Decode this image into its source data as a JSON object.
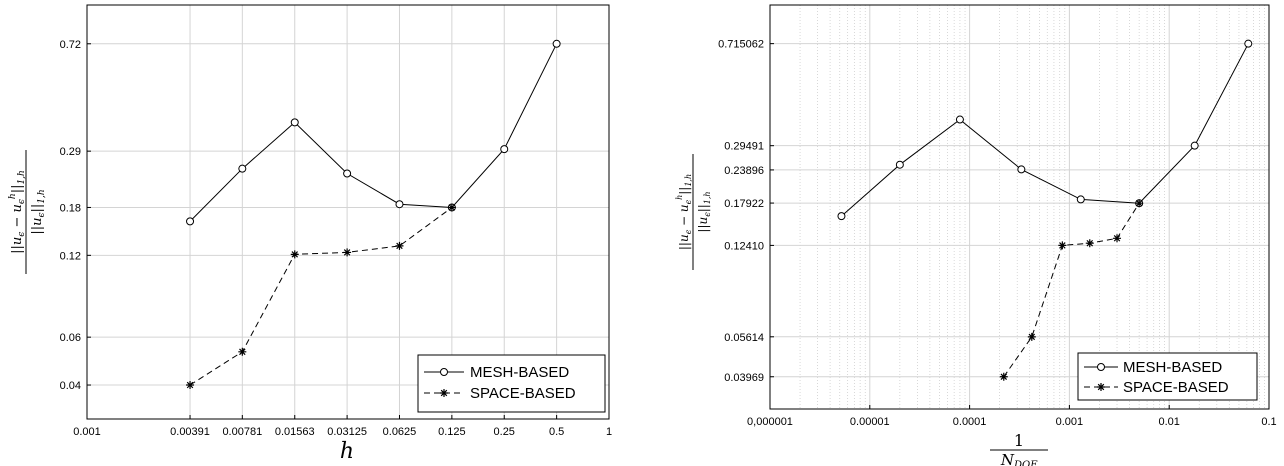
{
  "chart_data": [
    {
      "type": "line",
      "xlabel": "h",
      "ylabel": "||u_ϵ − u_ϵ^h||_{1,h} / ||u_ϵ||_{1,h}",
      "xscale": "log",
      "yscale": "log",
      "xlim": [
        0.001,
        1
      ],
      "ylim": [
        0.03,
        1.0
      ],
      "grid": true,
      "legend_position": "bottom-right",
      "x_ticks": [
        0.001,
        0.00391,
        0.00781,
        0.01563,
        0.03125,
        0.0625,
        0.125,
        0.25,
        0.5,
        1
      ],
      "x_tick_labels": [
        "0.001",
        "0.00391",
        "0.00781",
        "0.01563",
        "0.03125",
        "0.0625",
        "0.125",
        "0.25",
        "0.5",
        "1"
      ],
      "y_ticks": [
        0.04,
        0.06,
        0.12,
        0.18,
        0.29,
        0.72
      ],
      "y_tick_labels": [
        "0.04",
        "0.06",
        "0.12",
        "0.18",
        "0.29",
        "0.72"
      ],
      "series": [
        {
          "name": "MESH-BASED",
          "marker": "circle",
          "dash": "solid",
          "x": [
            0.00391,
            0.00781,
            0.01563,
            0.03125,
            0.0625,
            0.125,
            0.25,
            0.5
          ],
          "y": [
            0.16,
            0.25,
            0.37,
            0.24,
            0.185,
            0.18,
            0.295,
            0.72
          ]
        },
        {
          "name": "SPACE-BASED",
          "marker": "star",
          "dash": "dashed",
          "x": [
            0.00391,
            0.00781,
            0.01563,
            0.03125,
            0.0625,
            0.125
          ],
          "y": [
            0.04,
            0.053,
            0.121,
            0.123,
            0.13,
            0.18
          ]
        }
      ]
    },
    {
      "type": "line",
      "xlabel": "1/N_DOF",
      "ylabel": "||u_ϵ − u_ϵ^h||_{1,h} / ||u_ϵ||_{1,h}",
      "xscale": "log",
      "yscale": "log",
      "xlim": [
        1e-06,
        0.1
      ],
      "ylim": [
        0.03,
        1.0
      ],
      "grid": true,
      "minor_grid": true,
      "legend_position": "bottom-right",
      "x_ticks": [
        1e-06,
        1e-05,
        0.0001,
        0.001,
        0.01,
        0.1
      ],
      "x_tick_labels": [
        "0,000001",
        "0.00001",
        "0.0001",
        "0.001",
        "0.01",
        "0.1"
      ],
      "y_ticks": [
        0.03969,
        0.05614,
        0.1241,
        0.17922,
        0.23896,
        0.29491,
        0.715062
      ],
      "y_tick_labels": [
        "0.03969",
        "0.05614",
        "0.12410",
        "0.17922",
        "0.23896",
        "0.29491",
        "0.715062"
      ],
      "series": [
        {
          "name": "MESH-BASED",
          "marker": "circle",
          "dash": "solid",
          "x": [
            5.2e-06,
            2e-05,
            8e-05,
            0.00033,
            0.0013,
            0.005,
            0.018,
            0.062
          ],
          "y": [
            0.16,
            0.25,
            0.37,
            0.24,
            0.185,
            0.179,
            0.295,
            0.715
          ]
        },
        {
          "name": "SPACE-BASED",
          "marker": "star",
          "dash": "dashed",
          "x": [
            0.00022,
            0.00042,
            0.00085,
            0.0016,
            0.003,
            0.005
          ],
          "y": [
            0.0397,
            0.0561,
            0.1241,
            0.1265,
            0.132,
            0.179
          ]
        }
      ]
    }
  ]
}
